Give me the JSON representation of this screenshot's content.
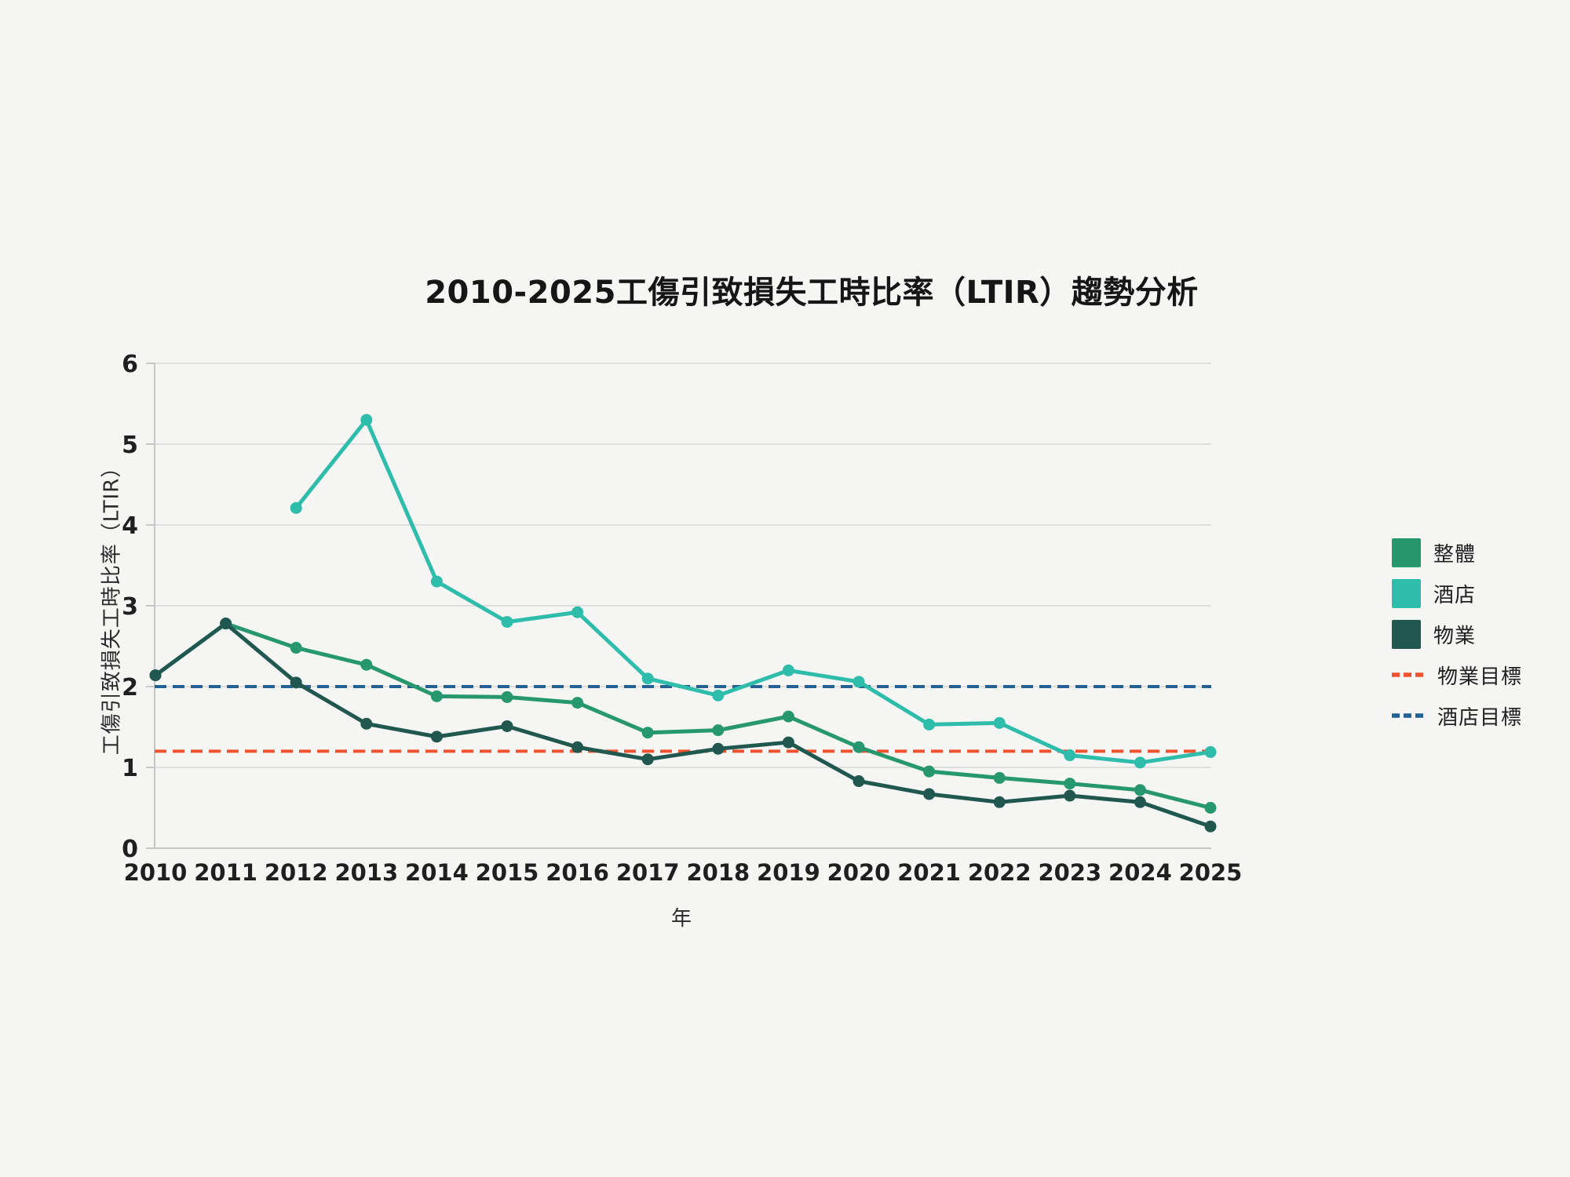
{
  "chart_data": {
    "type": "line",
    "title": "2010-2025工傷引致損失工時比率（LTIR）趨勢分析",
    "xlabel": "年",
    "ylabel": "工傷引致損失工時比率（LTIR）",
    "x": [
      2010,
      2011,
      2012,
      2013,
      2014,
      2015,
      2016,
      2017,
      2018,
      2019,
      2020,
      2021,
      2022,
      2023,
      2024,
      2025
    ],
    "ylim": [
      0,
      6
    ],
    "yticks": [
      0,
      1,
      2,
      3,
      4,
      5,
      6
    ],
    "grid": true,
    "legend_position": "right",
    "series": [
      {
        "key": "overall",
        "name": "整體",
        "color": "#27976f",
        "values": [
          2.14,
          2.78,
          2.48,
          2.27,
          1.88,
          1.87,
          1.8,
          1.43,
          1.46,
          1.63,
          1.25,
          0.95,
          0.87,
          0.8,
          0.72,
          0.5
        ]
      },
      {
        "key": "hotel",
        "name": "酒店",
        "color": "#2ebcab",
        "values": [
          null,
          null,
          4.21,
          5.3,
          3.3,
          2.8,
          2.92,
          2.1,
          1.89,
          2.2,
          2.06,
          1.53,
          1.55,
          1.15,
          1.06,
          1.19
        ]
      },
      {
        "key": "property",
        "name": "物業",
        "color": "#20584f",
        "values": [
          2.14,
          2.78,
          2.05,
          1.54,
          1.38,
          1.51,
          1.25,
          1.1,
          1.23,
          1.31,
          0.83,
          0.67,
          0.57,
          0.65,
          0.57,
          0.27
        ]
      }
    ],
    "targets": [
      {
        "key": "property-target",
        "name": "物業目標",
        "color": "#f0522f",
        "value": 1.2
      },
      {
        "key": "hotel-target",
        "name": "酒店目標",
        "color": "#236093",
        "value": 2.0
      }
    ]
  },
  "style": {
    "background": "#f5f5f4",
    "gridline_color": "#dedede",
    "axis_color": "#c6c6c6",
    "tick_label_color": "#1f1f1f"
  }
}
